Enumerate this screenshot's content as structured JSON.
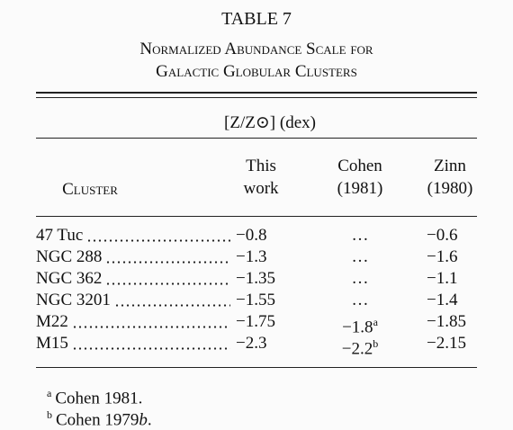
{
  "table": {
    "title": "TABLE 7",
    "caption_lines": [
      "Normalized Abundance Scale for",
      "Galactic Globular Clusters"
    ],
    "spanner": "[Z/Z⊙] (dex)",
    "columns": [
      [
        "Cluster"
      ],
      [
        "This",
        "work"
      ],
      [
        "Cohen",
        "(1981)"
      ],
      [
        "Zinn",
        "(1980)"
      ]
    ],
    "rows": [
      [
        {
          "text": "47 Tuc"
        },
        {
          "text": "−0.8"
        },
        {
          "text": "…"
        },
        {
          "text": "−0.6"
        }
      ],
      [
        {
          "text": "NGC 288"
        },
        {
          "text": "−1.3"
        },
        {
          "text": "…"
        },
        {
          "text": "−1.6"
        }
      ],
      [
        {
          "text": "NGC 362"
        },
        {
          "text": "−1.35"
        },
        {
          "text": "…"
        },
        {
          "text": "−1.1"
        }
      ],
      [
        {
          "text": "NGC 3201"
        },
        {
          "text": "−1.55"
        },
        {
          "text": "…"
        },
        {
          "text": "−1.4"
        }
      ],
      [
        {
          "text": "M22"
        },
        {
          "text": "−1.75"
        },
        {
          "text": "−1.8",
          "note": "a"
        },
        {
          "text": "−1.85"
        }
      ],
      [
        {
          "text": "M15"
        },
        {
          "text": "−2.3"
        },
        {
          "text": "−2.2",
          "note": "b"
        },
        {
          "text": "−2.15"
        }
      ]
    ],
    "footnotes": [
      {
        "mark": "a",
        "parts": [
          "Cohen 1981."
        ]
      },
      {
        "mark": "b",
        "parts": [
          "Cohen 1979",
          "b",
          "."
        ]
      }
    ]
  }
}
